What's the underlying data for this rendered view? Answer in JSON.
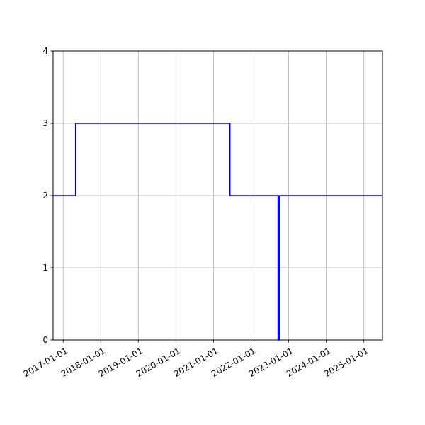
{
  "chart_data": {
    "type": "line",
    "title": "",
    "xlabel": "",
    "ylabel": "",
    "step": "post",
    "grid": true,
    "x_axis_type": "date",
    "xlim": [
      "2016-09-25",
      "2025-07-01"
    ],
    "ylim": [
      0,
      4
    ],
    "x_ticks": [
      "2017-01-01",
      "2018-01-01",
      "2019-01-01",
      "2020-01-01",
      "2021-01-01",
      "2022-01-01",
      "2023-01-01",
      "2024-01-01",
      "2025-01-01"
    ],
    "y_ticks": [
      0,
      1,
      2,
      3,
      4
    ],
    "colors": {
      "line": "#0000ff",
      "grid": "#b0b0b0",
      "axis": "#000000"
    },
    "series": [
      {
        "x": [
          "2016-09-25",
          "2017-05-01",
          "2021-06-10",
          "2022-09-20",
          "2022-09-27",
          "2022-10-01",
          "2022-10-08",
          "2025-07-01"
        ],
        "values": [
          2,
          3,
          2,
          0,
          2,
          0,
          2,
          2
        ]
      }
    ]
  }
}
